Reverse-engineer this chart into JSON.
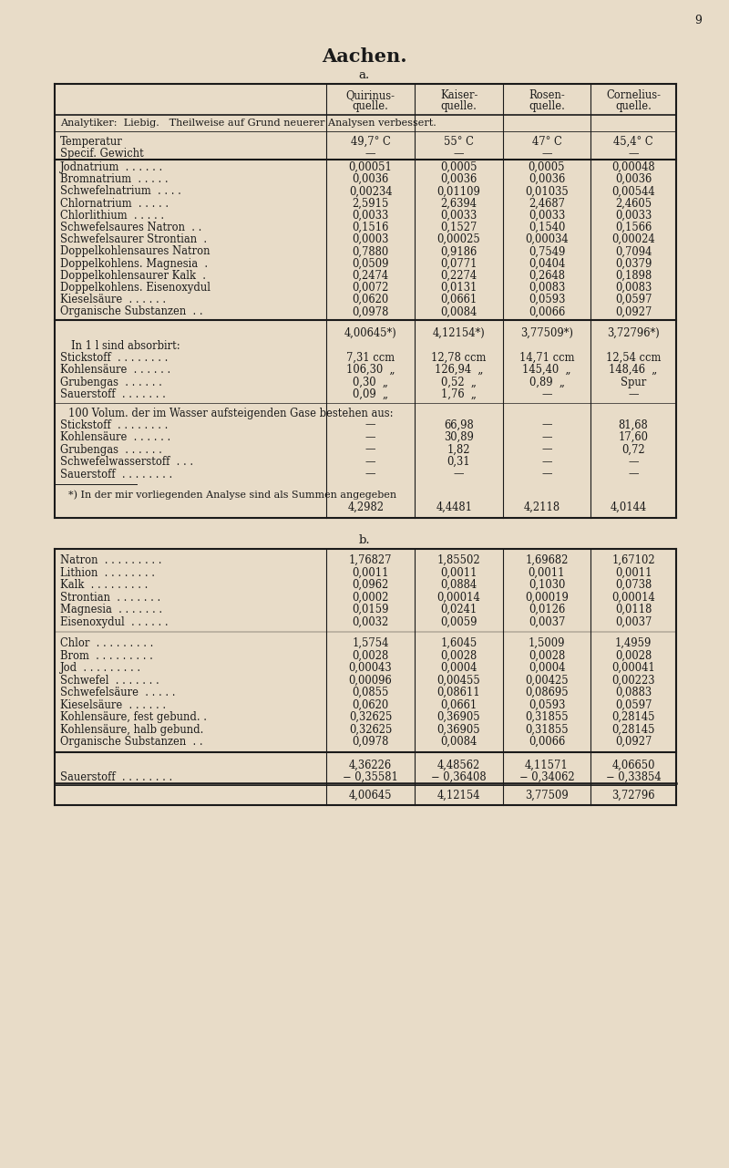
{
  "title": "Aachen.",
  "subtitle_a": "a.",
  "subtitle_b": "b.",
  "page_num": "9",
  "bg_color": "#e8dcc8",
  "text_color": "#1a1a1a",
  "col_headers": [
    [
      "Quirinus-",
      "quelle."
    ],
    [
      "Kaiser-",
      "quelle."
    ],
    [
      "Rosen-",
      "quelle."
    ],
    [
      "Cornelius-",
      "quelle."
    ]
  ],
  "analyst_row": "Analytiker:  Liebig.   Theilweise auf Grund neuerer Analysen verbessert.",
  "temp_row": [
    "Temperatur",
    "49,7° C",
    "55° C",
    "47° C",
    "45,4° C"
  ],
  "specif_row": [
    "Specif. Gewicht",
    "—",
    "—",
    "—",
    "—"
  ],
  "section_a_rows": [
    [
      "Jodnatrium  . . . . . .",
      "0,00051",
      "0,0005",
      "0,0005",
      "0,00048"
    ],
    [
      "Bromnatrium  . . . . .",
      "0,0036",
      "0,0036",
      "0,0036",
      "0,0036"
    ],
    [
      "Schwefelnatrium  . . . .",
      "0,00234",
      "0,01109",
      "0,01035",
      "0,00544"
    ],
    [
      "Chlornatrium  . . . . .",
      "2,5915",
      "2,6394",
      "2,4687",
      "2,4605"
    ],
    [
      "Chlorlithium  . . . . .",
      "0,0033",
      "0,0033",
      "0,0033",
      "0,0033"
    ],
    [
      "Schwefelsaures Natron  . .",
      "0,1516",
      "0,1527",
      "0,1540",
      "0,1566"
    ],
    [
      "Schwefelsaurer Strontian  .",
      "0,0003",
      "0,00025",
      "0,00034",
      "0,00024"
    ],
    [
      "Doppelkohlensaures Natron",
      "0,7880",
      "0,9186",
      "0,7549",
      "0,7094"
    ],
    [
      "Doppelkohlens. Magnesia  .",
      "0,0509",
      "0,0771",
      "0,0404",
      "0,0379"
    ],
    [
      "Doppelkohlensaurer Kalk  .",
      "0,2474",
      "0,2274",
      "0,2648",
      "0,1898"
    ],
    [
      "Doppelkohlens. Eisenoxydul",
      "0,0072",
      "0,0131",
      "0,0083",
      "0,0083"
    ],
    [
      "Kieselsäure  . . . . . .",
      "0,0620",
      "0,0661",
      "0,0593",
      "0,0597"
    ],
    [
      "Organische Substanzen  . .",
      "0,0978",
      "0,0084",
      "0,0066",
      "0,0927"
    ]
  ],
  "sum_row_a": [
    "",
    "4,00645*)",
    "4,12154*)",
    "3,77509*)",
    "3,72796*)"
  ],
  "absorbirt_header": "In 1 l sind absorbirt:",
  "absorbirt_rows": [
    [
      "Stickstoff  . . . . . . . .",
      "7,31 ccm",
      "12,78 ccm",
      "14,71 ccm",
      "12,54 ccm"
    ],
    [
      "Kohlensäure  . . . . . .",
      "106,30  „",
      "126,94  „",
      "145,40  „",
      "148,46  „"
    ],
    [
      "Grubengas  . . . . . .",
      "0,30  „",
      "0,52  „",
      "0,89  „",
      "Spur"
    ],
    [
      "Sauerstoff  . . . . . . .",
      "0,09  „",
      "1,76  „",
      "—",
      "—"
    ]
  ],
  "volum_header": "100 Volum. der im Wasser aufsteigenden Gase bestehen aus:",
  "volum_rows": [
    [
      "Stickstoff  . . . . . . . .",
      "—",
      "66,98",
      "—",
      "81,68"
    ],
    [
      "Kohlensäure  . . . . . .",
      "—",
      "30,89",
      "—",
      "17,60"
    ],
    [
      "Grubengas  . . . . . .",
      "—",
      "1,82",
      "—",
      "0,72"
    ],
    [
      "Schwefelwasserstoff  . . .",
      "—",
      "0,31",
      "—",
      "—"
    ],
    [
      "Sauerstoff  . . . . . . . .",
      "—",
      "—",
      "—",
      "—"
    ]
  ],
  "footnote_line": "*) In der mir vorliegenden Analyse sind als Summen angegeben",
  "footnote_vals": [
    "4,2982",
    "4,4481",
    "4,2118",
    "4,0144"
  ],
  "section_b_rows_upper": [
    [
      "Natron  . . . . . . . . .",
      "1,76827",
      "1,85502",
      "1,69682",
      "1,67102"
    ],
    [
      "Lithion  . . . . . . . .",
      "0,0011",
      "0,0011",
      "0,0011",
      "0,0011"
    ],
    [
      "Kalk  . . . . . . . . .",
      "0,0962",
      "0,0884",
      "0,1030",
      "0,0738"
    ],
    [
      "Strontian  . . . . . . .",
      "0,0002",
      "0,00014",
      "0,00019",
      "0,00014"
    ],
    [
      "Magnesia  . . . . . . .",
      "0,0159",
      "0,0241",
      "0,0126",
      "0,0118"
    ],
    [
      "Eisenoxydul  . . . . . .",
      "0,0032",
      "0,0059",
      "0,0037",
      "0,0037"
    ]
  ],
  "section_b_rows_lower": [
    [
      "Chlor  . . . . . . . . .",
      "1,5754",
      "1,6045",
      "1,5009",
      "1,4959"
    ],
    [
      "Brom  . . . . . . . . .",
      "0,0028",
      "0,0028",
      "0,0028",
      "0,0028"
    ],
    [
      "Jod  . . . . . . . . .",
      "0,00043",
      "0,0004",
      "0,0004",
      "0,00041"
    ],
    [
      "Schwefel  . . . . . . .",
      "0,00096",
      "0,00455",
      "0,00425",
      "0,00223"
    ],
    [
      "Schwefelsäure  . . . . .",
      "0,0855",
      "0,08611",
      "0,08695",
      "0,0883"
    ],
    [
      "Kieselsäure  . . . . . .",
      "0,0620",
      "0,0661",
      "0,0593",
      "0,0597"
    ],
    [
      "Kohlensäure, fest gebund. .",
      "0,32625",
      "0,36905",
      "0,31855",
      "0,28145"
    ],
    [
      "Kohlensäure, halb gebund.",
      "0,32625",
      "0,36905",
      "0,31855",
      "0,28145"
    ],
    [
      "Organische Substanzen  . .",
      "0,0978",
      "0,0084",
      "0,0066",
      "0,0927"
    ]
  ],
  "sum_row_b1": [
    "",
    "4,36226",
    "4,48562",
    "4,11571",
    "4,06650"
  ],
  "sauerstoff_row": [
    "Sauerstoff  . . . . . . . .",
    "− 0,35581",
    "− 0,36408",
    "− 0,34062",
    "− 0,33854"
  ],
  "sum_row_b2": [
    "",
    "4,00645",
    "4,12154",
    "3,77509",
    "3,72796"
  ]
}
